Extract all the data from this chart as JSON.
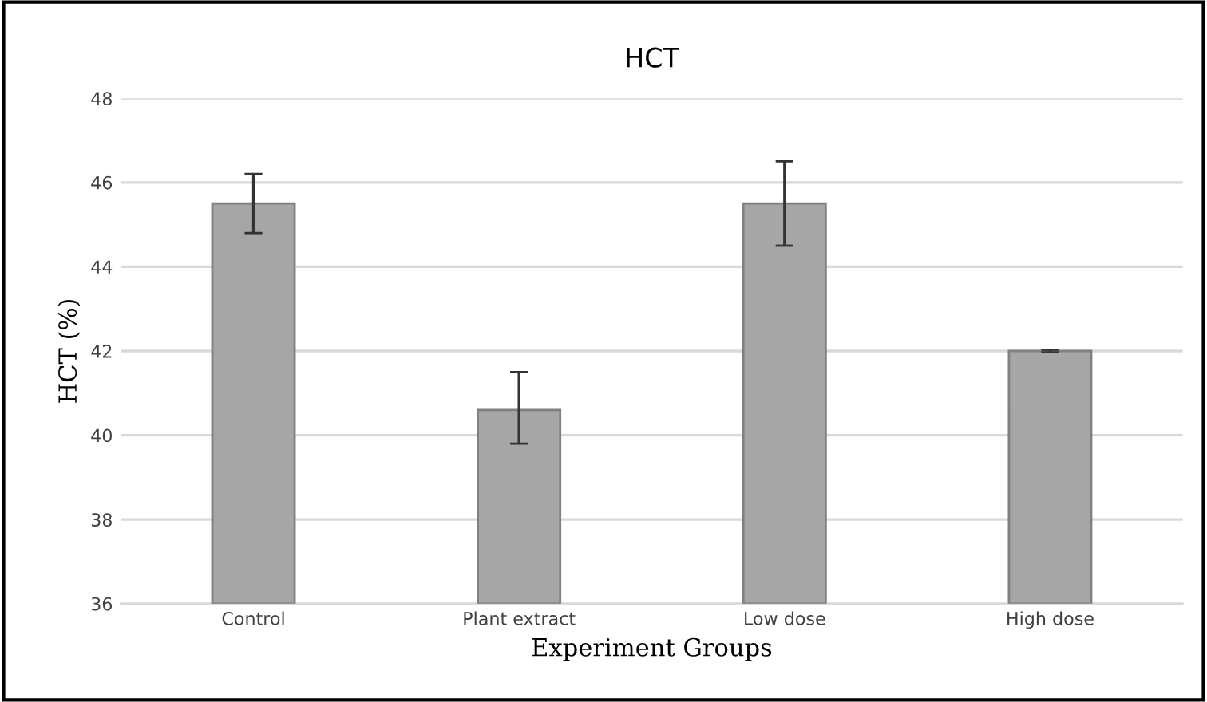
{
  "chart_data": {
    "type": "bar",
    "title": "HCT",
    "xlabel": "Experiment Groups",
    "ylabel": "HCT (%)",
    "categories": [
      "Control",
      "Plant extract",
      "Low dose",
      "High dose"
    ],
    "values": [
      45.5,
      40.6,
      45.5,
      42.0
    ],
    "errors": [
      [
        44.8,
        46.2
      ],
      [
        39.8,
        41.5
      ],
      [
        44.5,
        46.5
      ],
      [
        41.97,
        42.03
      ]
    ],
    "color": "#a6a6a6",
    "ylim": [
      36,
      48
    ],
    "yticks": [
      36,
      38,
      40,
      42,
      44,
      46,
      48
    ],
    "grid": "y"
  }
}
